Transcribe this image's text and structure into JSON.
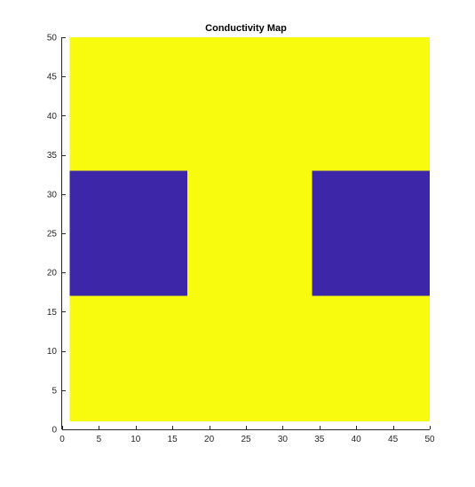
{
  "chart_data": {
    "type": "heatmap",
    "title": "Conductivity Map",
    "xlabel": "",
    "ylabel": "",
    "xlim": [
      0,
      50
    ],
    "ylim": [
      0,
      50
    ],
    "xticks": [
      0,
      5,
      10,
      15,
      20,
      25,
      30,
      35,
      40,
      45,
      50
    ],
    "yticks": [
      0,
      5,
      10,
      15,
      20,
      25,
      30,
      35,
      40,
      45,
      50
    ],
    "grid": false,
    "colors": {
      "high": "#f9fb0e",
      "low": "#3e26a8"
    },
    "background_region": {
      "x": [
        1,
        50
      ],
      "y": [
        1,
        50
      ],
      "level": "high"
    },
    "regions": [
      {
        "x": [
          1,
          17
        ],
        "y": [
          17,
          33
        ],
        "level": "low"
      },
      {
        "x": [
          34,
          50
        ],
        "y": [
          17,
          33
        ],
        "level": "low"
      }
    ]
  }
}
